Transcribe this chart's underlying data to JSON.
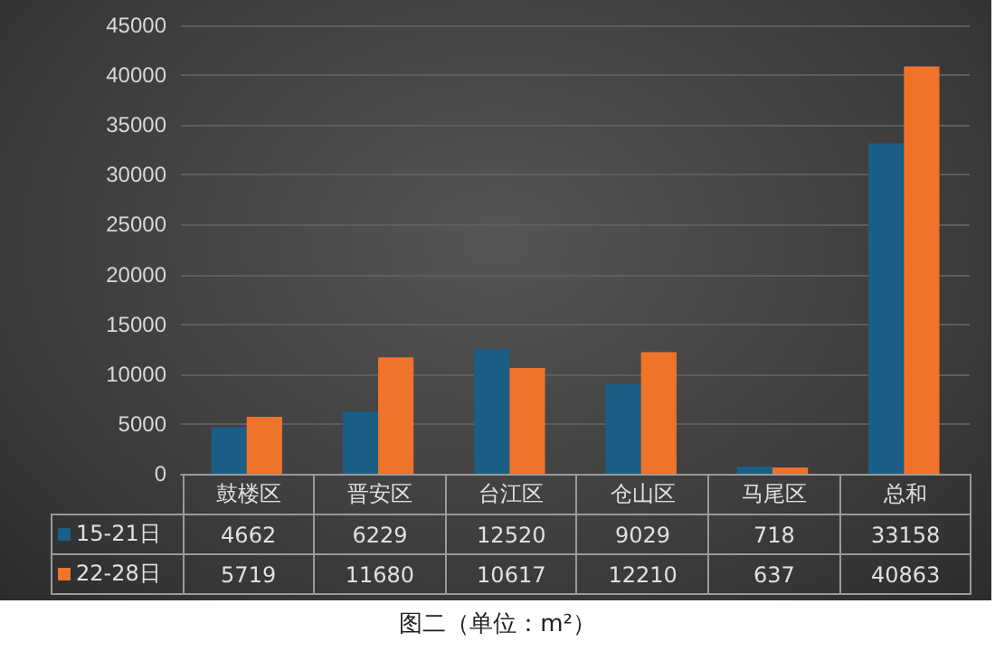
{
  "chart_data": {
    "type": "bar",
    "categories": [
      "鼓楼区",
      "晋安区",
      "台江区",
      "仓山区",
      "马尾区",
      "总和"
    ],
    "series": [
      {
        "name": "15-21日",
        "color": "#1b5e86",
        "values": [
          4662,
          6229,
          12520,
          9029,
          718,
          33158
        ]
      },
      {
        "name": "22-28日",
        "color": "#f0732a",
        "values": [
          5719,
          11680,
          10617,
          12210,
          637,
          40863
        ]
      }
    ],
    "ylim": [
      0,
      45000
    ],
    "yticks": [
      0,
      5000,
      10000,
      15000,
      20000,
      25000,
      30000,
      35000,
      40000,
      45000
    ],
    "grid": "y",
    "legend": "bottom",
    "data_labels": true,
    "annotations": [
      "图二（单位：m²）"
    ]
  }
}
